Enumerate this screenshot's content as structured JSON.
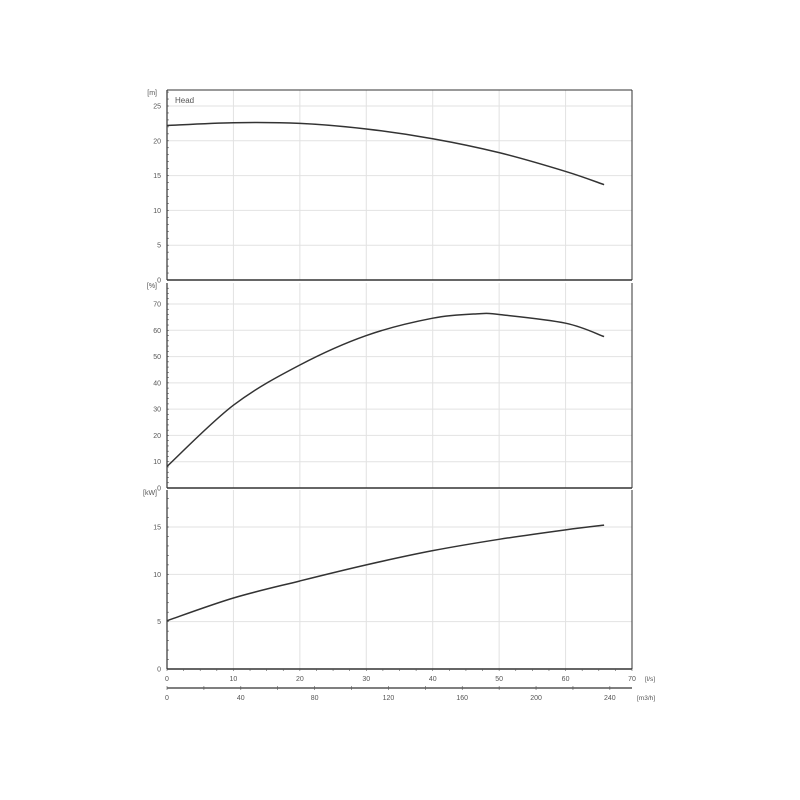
{
  "chart_data": [
    {
      "type": "line",
      "title": "Head",
      "ylabel": "[m]",
      "ylim": [
        0,
        25
      ],
      "yticks": [
        0,
        5,
        10,
        15,
        20,
        25
      ],
      "grid": true,
      "x": [
        0,
        10,
        20,
        30,
        40,
        50,
        60,
        65.8
      ],
      "values": [
        22.2,
        22.6,
        22.5,
        21.7,
        20.3,
        18.3,
        15.6,
        13.7
      ],
      "color": "#333333"
    },
    {
      "type": "line",
      "ylabel": "[%]",
      "ylim": [
        0,
        70
      ],
      "yticks": [
        0,
        10,
        20,
        30,
        40,
        50,
        60,
        70
      ],
      "grid": true,
      "x": [
        0,
        10,
        20,
        30,
        40,
        47,
        50,
        60,
        65.8
      ],
      "values": [
        8.2,
        31.5,
        46.8,
        58,
        64.6,
        66.3,
        66,
        62.7,
        57.6
      ],
      "color": "#333333"
    },
    {
      "type": "line",
      "ylabel": "[kW]",
      "ylim": [
        0,
        17
      ],
      "yticks": [
        0,
        5,
        10,
        15
      ],
      "grid": true,
      "x": [
        0,
        10,
        20,
        30,
        40,
        50,
        60,
        65.8
      ],
      "values": [
        5.1,
        7.5,
        9.3,
        11.0,
        12.5,
        13.7,
        14.7,
        15.2
      ],
      "color": "#333333"
    }
  ],
  "x_axis": {
    "unit": "[l/s]",
    "xlim": [
      0,
      70
    ],
    "ticks": [
      0,
      10,
      20,
      30,
      40,
      50,
      60,
      70
    ]
  },
  "x_axis_secondary": {
    "unit": "[m3/h]",
    "ticks": [
      0,
      40,
      80,
      120,
      160,
      200,
      240
    ]
  }
}
